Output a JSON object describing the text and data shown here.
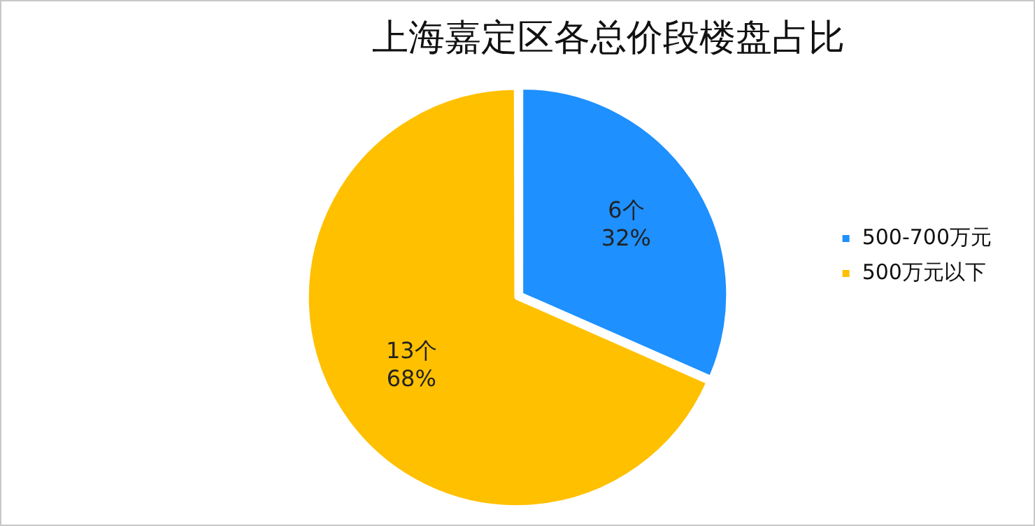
{
  "chart_data": {
    "type": "pie",
    "title": "上海嘉定区各总价段楼盘占比",
    "categories": [
      "500-700万元",
      "500万元以下"
    ],
    "values": [
      6,
      13
    ],
    "colors": [
      "#1e90ff",
      "#ffc000"
    ],
    "value_labels": [
      "6个\n32%",
      "13个\n68%"
    ],
    "legend": "right"
  }
}
